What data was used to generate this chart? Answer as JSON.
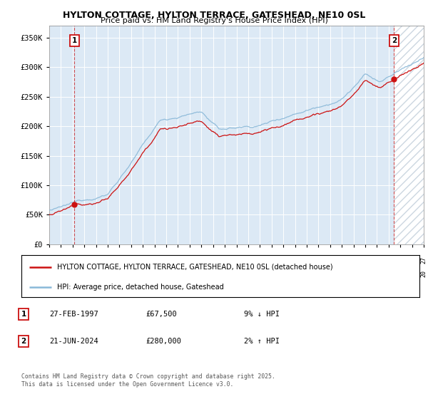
{
  "title": "HYLTON COTTAGE, HYLTON TERRACE, GATESHEAD, NE10 0SL",
  "subtitle": "Price paid vs. HM Land Registry's House Price Index (HPI)",
  "background_color": "#ffffff",
  "plot_bg_color": "#dce9f5",
  "hpi_color": "#89b8d8",
  "price_color": "#cc1111",
  "ylabel_values": [
    "£0",
    "£50K",
    "£100K",
    "£150K",
    "£200K",
    "£250K",
    "£300K",
    "£350K"
  ],
  "ytick_values": [
    0,
    50000,
    100000,
    150000,
    200000,
    250000,
    300000,
    350000
  ],
  "xlim_start": 1995.0,
  "xlim_end": 2027.0,
  "ylim": [
    0,
    370000
  ],
  "transaction1_date": "27-FEB-1997",
  "transaction1_price": "£67,500",
  "transaction1_hpi": "9% ↓ HPI",
  "transaction1_x": 1997.15,
  "transaction1_y": 67500,
  "transaction2_date": "21-JUN-2024",
  "transaction2_price": "£280,000",
  "transaction2_hpi": "2% ↑ HPI",
  "transaction2_x": 2024.47,
  "transaction2_y": 280000,
  "legend_label1": "HYLTON COTTAGE, HYLTON TERRACE, GATESHEAD, NE10 0SL (detached house)",
  "legend_label2": "HPI: Average price, detached house, Gateshead",
  "footer": "Contains HM Land Registry data © Crown copyright and database right 2025.\nThis data is licensed under the Open Government Licence v3.0.",
  "hatched_region_start": 2024.47,
  "hatched_region_end": 2027.0
}
